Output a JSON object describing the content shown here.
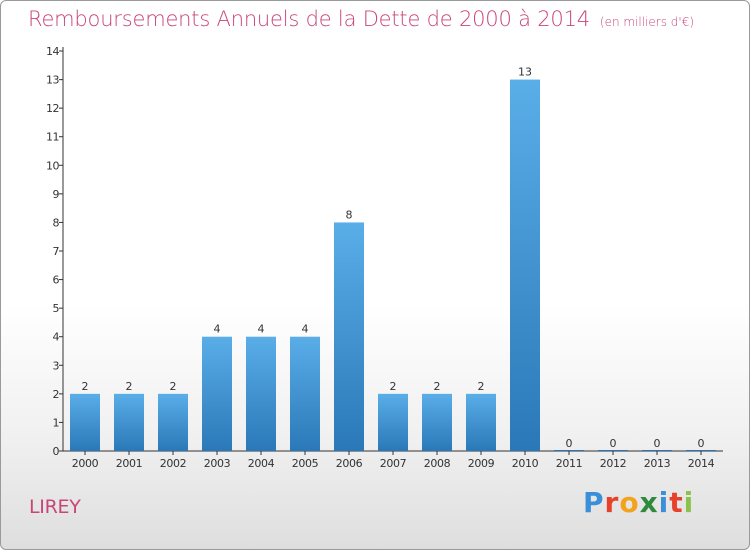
{
  "title": "Remboursements Annuels de la Dette de 2000 à 2014",
  "unit_note": "(en milliers d'€)",
  "commune": "LIREY",
  "logo": {
    "text": "Proxiti",
    "letters": [
      {
        "ch": "P",
        "color": "#3a8fd8"
      },
      {
        "ch": "r",
        "color": "#e8412b"
      },
      {
        "ch": "o",
        "color": "#f2a31b"
      },
      {
        "ch": "x",
        "color": "#2e8b3e"
      },
      {
        "ch": "i",
        "color": "#3a8fd8"
      },
      {
        "ch": "t",
        "color": "#e8412b"
      },
      {
        "ch": "i",
        "color": "#8bc34a"
      }
    ]
  },
  "colors": {
    "accent": "#c8457a",
    "bar_top": "#5aaee8",
    "bar_bottom": "#2a78b8"
  },
  "chart_data": {
    "type": "bar",
    "categories": [
      "2000",
      "2001",
      "2002",
      "2003",
      "2004",
      "2005",
      "2006",
      "2007",
      "2008",
      "2009",
      "2010",
      "2011",
      "2012",
      "2013",
      "2014"
    ],
    "values": [
      2,
      2,
      2,
      4,
      4,
      4,
      8,
      2,
      2,
      2,
      13,
      0,
      0,
      0,
      0
    ],
    "data_labels": [
      "2",
      "2",
      "2",
      "4",
      "4",
      "4",
      "8",
      "2",
      "2",
      "2",
      "13",
      "0",
      "0",
      "0",
      "0"
    ],
    "ylim": [
      0,
      14
    ],
    "yticks": [
      "0",
      "1",
      "2",
      "3",
      "4",
      "5",
      "6",
      "7",
      "8",
      "9",
      "10",
      "11",
      "12",
      "13",
      "14"
    ],
    "grid": false,
    "xlabel": "",
    "ylabel": ""
  }
}
